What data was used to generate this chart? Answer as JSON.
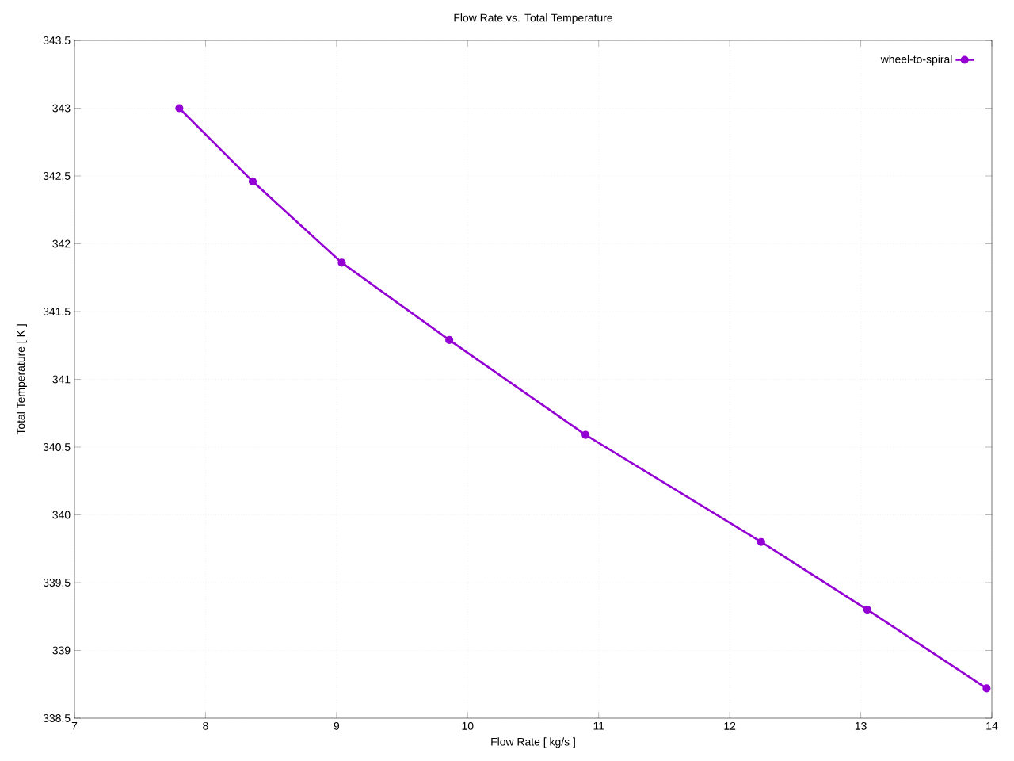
{
  "chart_data": {
    "type": "line",
    "title": "Flow Rate vs. Total Temperature",
    "xlabel": "Flow Rate [ kg/s ]",
    "ylabel": "Total Temperature [ K ]",
    "x": [
      7.8,
      8.36,
      9.04,
      9.86,
      10.9,
      12.24,
      13.05,
      13.96
    ],
    "series": [
      {
        "name": "wheel-to-spiral",
        "color": "#9400d3",
        "values": [
          343.0,
          342.46,
          341.86,
          341.29,
          340.59,
          339.8,
          339.3,
          338.72
        ]
      }
    ],
    "xlim": [
      7,
      14
    ],
    "ylim": [
      338.5,
      343.5
    ],
    "xticks": [
      7,
      8,
      9,
      10,
      11,
      12,
      13,
      14
    ],
    "yticks": [
      338.5,
      339,
      339.5,
      340,
      340.5,
      341,
      341.5,
      342,
      342.5,
      343,
      343.5
    ],
    "grid": true,
    "legend": "top right",
    "marker": "circle",
    "line_style": "solid"
  }
}
